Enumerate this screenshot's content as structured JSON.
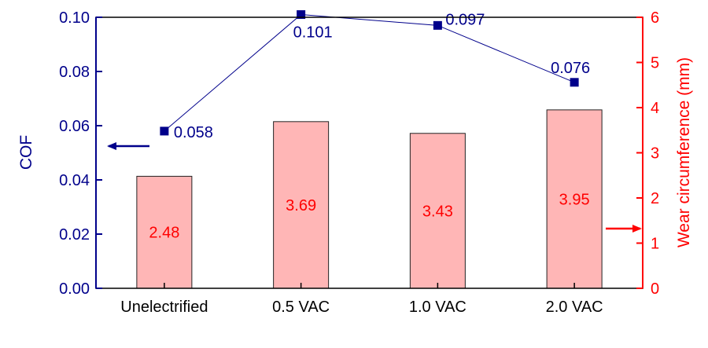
{
  "chart_data": {
    "type": "bar+line",
    "categories": [
      "Unelectrified",
      "0.5 VAC",
      "1.0 VAC",
      "2.0 VAC"
    ],
    "series": [
      {
        "name": "",
        "type": "bar",
        "axis": "right",
        "values": [
          2.48,
          3.69,
          3.43,
          3.95
        ],
        "labels": [
          "2.48",
          "3.69",
          "3.43",
          "3.95"
        ],
        "color": "#ffb6b6",
        "edge_color": "#222222"
      },
      {
        "name": "",
        "type": "line",
        "axis": "left",
        "values": [
          0.058,
          0.101,
          0.097,
          0.076
        ],
        "labels": [
          "0.058",
          "0.101",
          "0.097",
          "0.076"
        ],
        "color": "#00008b",
        "marker": "square"
      }
    ],
    "y_left": {
      "label": "COF",
      "ylim": [
        0,
        0.1
      ],
      "ticks": [
        0.0,
        0.02,
        0.04,
        0.06,
        0.08,
        0.1
      ],
      "tick_labels": [
        "0.00",
        "0.02",
        "0.04",
        "0.06",
        "0.08",
        "0.10"
      ],
      "color": "#00008b"
    },
    "y_right": {
      "label": "Wear circumference (mm)",
      "ylim": [
        0,
        6
      ],
      "ticks": [
        0,
        1,
        2,
        3,
        4,
        5,
        6
      ],
      "tick_labels": [
        "0",
        "1",
        "2",
        "3",
        "4",
        "5",
        "6"
      ],
      "color": "#ff0000"
    },
    "grid": false,
    "legend": "none",
    "annotations": [
      {
        "type": "arrow",
        "direction": "left",
        "meaning": "COF series on left axis",
        "color": "#00008b"
      },
      {
        "type": "arrow",
        "direction": "right",
        "meaning": "wear series on right axis",
        "color": "#ff0000"
      }
    ]
  }
}
